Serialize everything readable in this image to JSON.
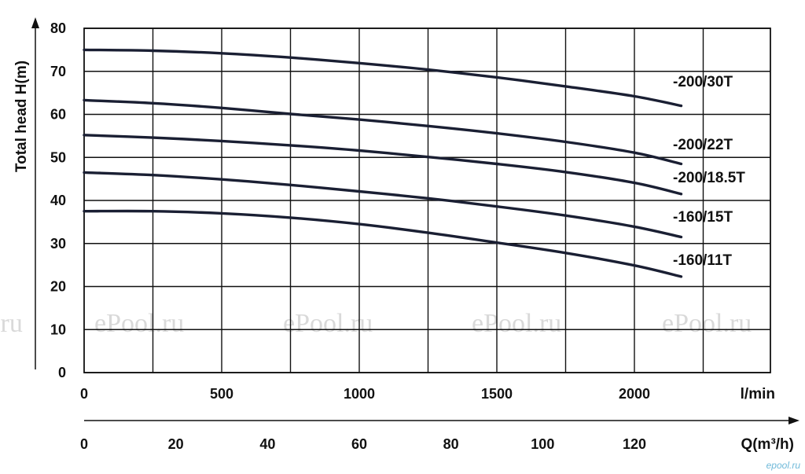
{
  "chart_data": {
    "type": "line",
    "ylabel": "Total head  H(m)",
    "ylim": [
      0,
      80
    ],
    "yticks": [
      "0",
      "10",
      "20",
      "30",
      "40",
      "50",
      "60",
      "70",
      "80"
    ],
    "x_primary": {
      "unit": "l/min",
      "lim": [
        0,
        2500
      ],
      "ticks": [
        "0",
        "500",
        "1000",
        "1500",
        "2000"
      ]
    },
    "x_secondary": {
      "unit": "Q(m³/h)",
      "lim": [
        0,
        150
      ],
      "ticks": [
        "0",
        "20",
        "40",
        "60",
        "80",
        "100",
        "120"
      ]
    },
    "grid": true,
    "series": [
      {
        "name": "-200/30T",
        "x": [
          0,
          250,
          500,
          750,
          1000,
          1250,
          1500,
          1750,
          2000,
          2170
        ],
        "y": [
          75,
          74.8,
          74.2,
          73.2,
          71.9,
          70.4,
          68.6,
          66.5,
          64.2,
          62
        ]
      },
      {
        "name": "-200/22T",
        "x": [
          0,
          250,
          500,
          750,
          1000,
          1250,
          1500,
          1750,
          2000,
          2170
        ],
        "y": [
          63.3,
          62.6,
          61.5,
          60.1,
          58.8,
          57.3,
          55.6,
          53.6,
          51.1,
          48.5
        ]
      },
      {
        "name": "-200/18.5T",
        "x": [
          0,
          250,
          500,
          750,
          1000,
          1250,
          1500,
          1750,
          2000,
          2170
        ],
        "y": [
          55.2,
          54.6,
          53.8,
          52.8,
          51.6,
          50.1,
          48.5,
          46.6,
          44.1,
          41.5
        ]
      },
      {
        "name": "-160/15T",
        "x": [
          0,
          250,
          500,
          750,
          1000,
          1250,
          1500,
          1750,
          2000,
          2170
        ],
        "y": [
          46.5,
          45.9,
          44.9,
          43.6,
          42.1,
          40.5,
          38.6,
          36.5,
          33.9,
          31.5
        ]
      },
      {
        "name": "-160/11T",
        "x": [
          0,
          250,
          500,
          750,
          1000,
          1250,
          1500,
          1750,
          2000,
          2170
        ],
        "y": [
          37.5,
          37.5,
          37,
          36,
          34.5,
          32.5,
          30.2,
          27.8,
          24.9,
          22.3
        ]
      }
    ],
    "watermarks": [
      ".ru",
      "ePool.ru",
      "ePool.ru",
      "ePool.ru",
      "ePool.ru"
    ],
    "credit": "epool.ru"
  }
}
